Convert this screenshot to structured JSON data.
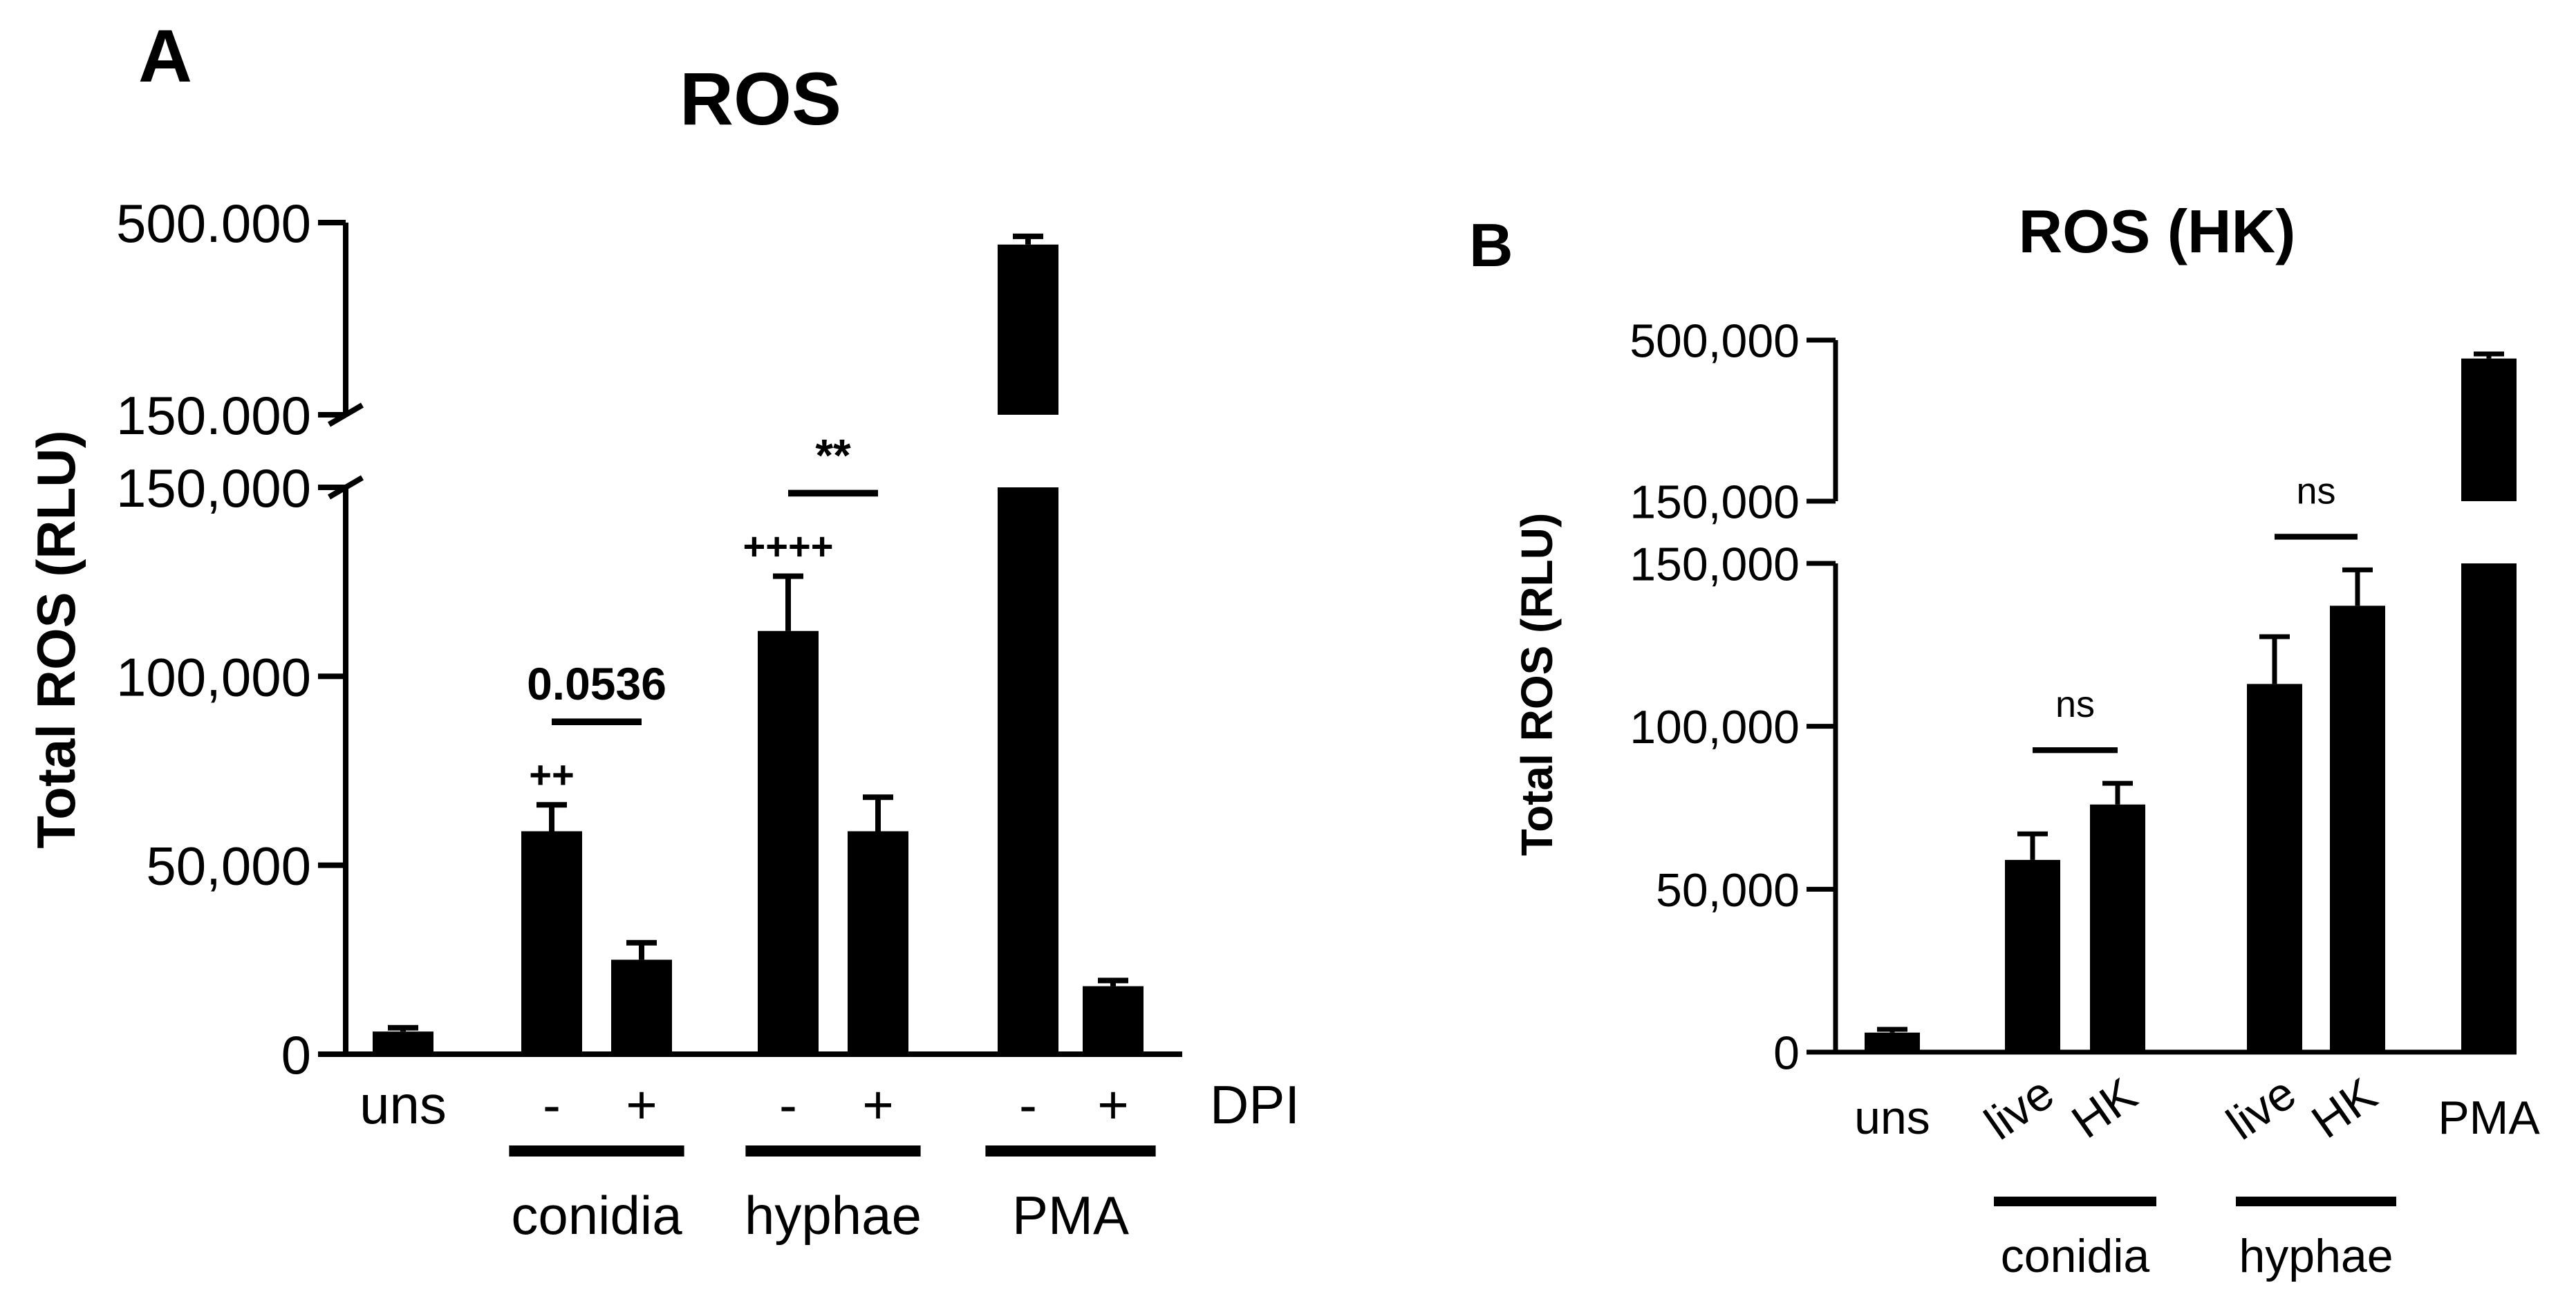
{
  "chart_data": [
    {
      "type": "bar",
      "panel_label": "A",
      "title": "ROS",
      "ylabel": "Total ROS (RLU)",
      "y_axis_broken": true,
      "y_segments": [
        {
          "range": [
            0,
            150000
          ],
          "tick_values": [
            0,
            50000,
            100000,
            150000
          ],
          "tick_labels": [
            "0",
            "50,000",
            "100,000",
            "150,000"
          ]
        },
        {
          "range": [
            150000,
            500000
          ],
          "tick_values": [
            150000,
            500000
          ],
          "tick_labels": [
            "150.000",
            "500.000"
          ]
        }
      ],
      "categories": [
        "uns",
        "-",
        "+",
        "-",
        "+",
        "-",
        "+"
      ],
      "x_row_label": "DPI",
      "groups": [
        {
          "label": "conidia",
          "bars": [
            1,
            2
          ]
        },
        {
          "label": "hyphae",
          "bars": [
            3,
            4
          ]
        },
        {
          "label": "PMA",
          "bars": [
            5,
            6
          ]
        }
      ],
      "values": [
        6000,
        59000,
        25000,
        112000,
        59000,
        460000,
        18000
      ],
      "errors": [
        1000,
        7000,
        4500,
        14500,
        9000,
        15000,
        1500
      ],
      "color": "#000000",
      "annotations": {
        "brackets": [
          {
            "bars": [
              1,
              2
            ],
            "label": "0.0536"
          },
          {
            "bars": [
              3,
              4
            ],
            "label": "**"
          }
        ],
        "bar_marks": [
          {
            "bar": 1,
            "label": "++"
          },
          {
            "bar": 3,
            "label": "++++"
          }
        ]
      }
    },
    {
      "type": "bar",
      "panel_label": "B",
      "title": "ROS (HK)",
      "ylabel": "Total ROS (RLU)",
      "y_axis_broken": true,
      "y_segments": [
        {
          "range": [
            0,
            150000
          ],
          "tick_values": [
            0,
            50000,
            100000,
            150000
          ],
          "tick_labels": [
            "0",
            "50,000",
            "100,000",
            "150,000"
          ]
        },
        {
          "range": [
            150000,
            500000
          ],
          "tick_values": [
            150000,
            500000
          ],
          "tick_labels": [
            "150,000",
            "500,000"
          ]
        }
      ],
      "categories": [
        "uns",
        "live",
        "HK",
        "live",
        "HK",
        "PMA"
      ],
      "groups": [
        {
          "label": "conidia",
          "bars": [
            1,
            2
          ]
        },
        {
          "label": "hyphae",
          "bars": [
            3,
            4
          ]
        }
      ],
      "values": [
        6000,
        59000,
        76000,
        113000,
        137000,
        460000
      ],
      "errors": [
        1000,
        8000,
        6500,
        14500,
        11000,
        10000
      ],
      "color": "#000000",
      "annotations": {
        "brackets": [
          {
            "bars": [
              1,
              2
            ],
            "label": "ns"
          },
          {
            "bars": [
              3,
              4
            ],
            "label": "ns"
          }
        ]
      }
    }
  ]
}
